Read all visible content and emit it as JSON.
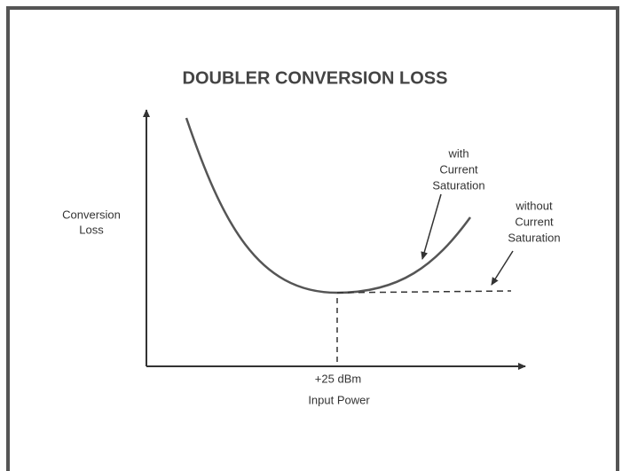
{
  "title": "DOUBLER CONVERSION LOSS",
  "y_axis_label": [
    "Conversion",
    "Loss"
  ],
  "x_axis_label": "Input Power",
  "x_marker_label": "+25 dBm",
  "annotations": [
    {
      "lines": [
        "with",
        "Current",
        "Saturation"
      ]
    },
    {
      "lines": [
        "without",
        "Current",
        "Saturation"
      ]
    }
  ]
}
